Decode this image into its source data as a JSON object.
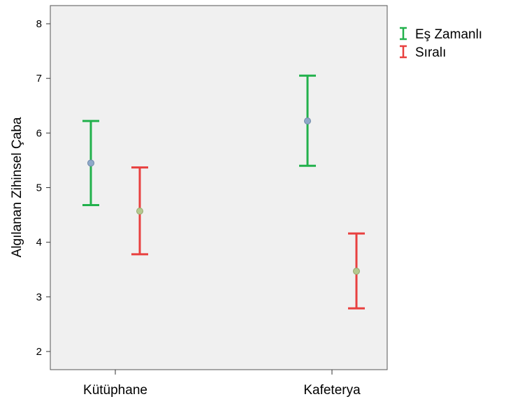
{
  "chart_data": {
    "type": "errorbar",
    "ylabel": "Algılanan Zihinsel Çaba",
    "xlabel": "",
    "ylim": [
      1.6,
      8.3
    ],
    "yticks": [
      2,
      3,
      4,
      5,
      6,
      7,
      8
    ],
    "categories": [
      "Kütüphane",
      "Kafeterya"
    ],
    "legend_position": "top-right, outside plot",
    "grid": false,
    "series": [
      {
        "name": "Eş Zamanlı",
        "color": "#22b14c",
        "points": [
          {
            "category": "Kütüphane",
            "mean": 5.45,
            "lower": 4.68,
            "upper": 6.22
          },
          {
            "category": "Kafeterya",
            "mean": 6.22,
            "lower": 5.4,
            "upper": 7.05
          }
        ]
      },
      {
        "name": "Sıralı",
        "color": "#e8403f",
        "points": [
          {
            "category": "Kütüphane",
            "mean": 4.57,
            "lower": 3.78,
            "upper": 5.37
          },
          {
            "category": "Kafeterya",
            "mean": 3.47,
            "lower": 2.79,
            "upper": 4.16
          }
        ]
      }
    ]
  }
}
